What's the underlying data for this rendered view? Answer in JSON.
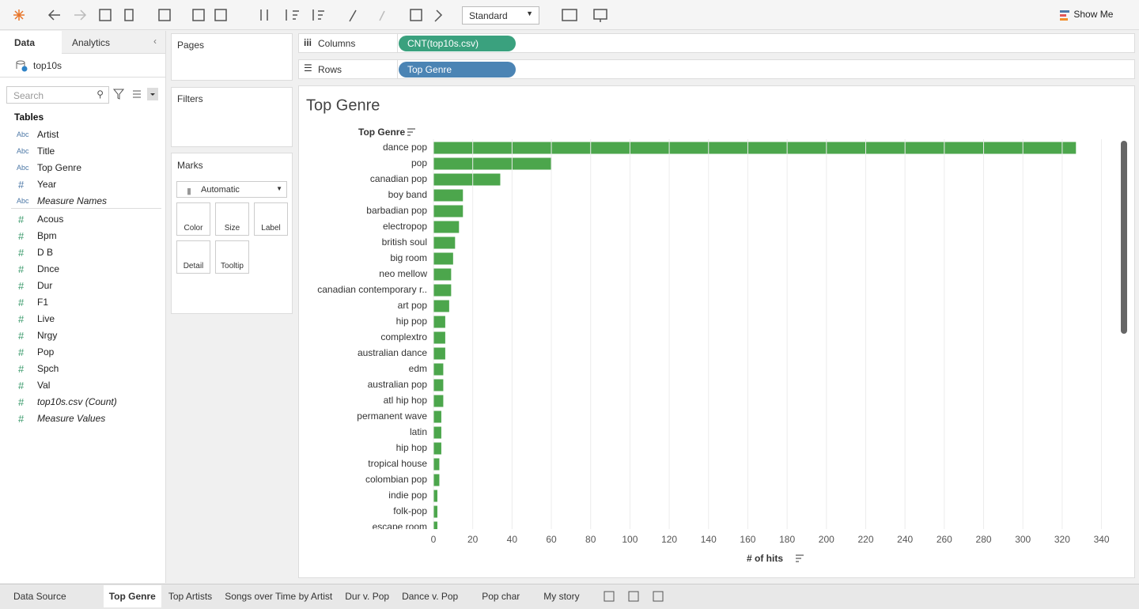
{
  "toolbar": {
    "fit": "Standard",
    "show_me": "Show Me"
  },
  "data_pane": {
    "tabs": [
      "Data",
      "Analytics"
    ],
    "source": "top10s",
    "search_placeholder": "Search",
    "section": "Tables",
    "dimensions": [
      {
        "type": "Abc",
        "name": "Artist",
        "italic": false
      },
      {
        "type": "Abc",
        "name": "Title",
        "italic": false
      },
      {
        "type": "Abc",
        "name": "Top Genre",
        "italic": false
      },
      {
        "type": "#",
        "name": "Year",
        "italic": false
      },
      {
        "type": "Abc",
        "name": "Measure Names",
        "italic": true
      }
    ],
    "measures": [
      {
        "type": "#",
        "name": "Acous",
        "italic": false
      },
      {
        "type": "#",
        "name": "Bpm",
        "italic": false
      },
      {
        "type": "#",
        "name": "D B",
        "italic": false
      },
      {
        "type": "#",
        "name": "Dnce",
        "italic": false
      },
      {
        "type": "#",
        "name": "Dur",
        "italic": false
      },
      {
        "type": "#",
        "name": "F1",
        "italic": false
      },
      {
        "type": "#",
        "name": "Live",
        "italic": false
      },
      {
        "type": "#",
        "name": "Nrgy",
        "italic": false
      },
      {
        "type": "#",
        "name": "Pop",
        "italic": false
      },
      {
        "type": "#",
        "name": "Spch",
        "italic": false
      },
      {
        "type": "#",
        "name": "Val",
        "italic": false
      },
      {
        "type": "#",
        "name": "top10s.csv (Count)",
        "italic": true
      },
      {
        "type": "#",
        "name": "Measure Values",
        "italic": true
      }
    ]
  },
  "shelves": {
    "pages": "Pages",
    "filters": "Filters",
    "marks": "Marks",
    "mark_type": "Automatic",
    "mark_buttons": [
      "Color",
      "Size",
      "Label",
      "Detail",
      "Tooltip"
    ],
    "columns": "Columns",
    "columns_pill": "CNT(top10s.csv)",
    "rows": "Rows",
    "rows_pill": "Top Genre"
  },
  "chart_data": {
    "type": "bar",
    "orientation": "horizontal",
    "title": "Top Genre",
    "y_header": "Top Genre",
    "x_label": "# of hits",
    "color": "#4ca64c",
    "grid": true,
    "categories": [
      "dance pop",
      "pop",
      "canadian pop",
      "boy band",
      "barbadian pop",
      "electropop",
      "british soul",
      "big room",
      "neo mellow",
      "canadian contemporary r..",
      "art pop",
      "hip pop",
      "complextro",
      "australian dance",
      "edm",
      "australian pop",
      "atl hip hop",
      "permanent wave",
      "latin",
      "hip hop",
      "tropical house",
      "colombian pop",
      "indie pop",
      "folk-pop",
      "escape room"
    ],
    "values": [
      327,
      60,
      34,
      15,
      15,
      13,
      11,
      10,
      9,
      9,
      8,
      6,
      6,
      6,
      5,
      5,
      5,
      4,
      4,
      4,
      3,
      3,
      2,
      2,
      2
    ],
    "xlim": [
      0,
      345
    ],
    "xticks": [
      0,
      20,
      40,
      60,
      80,
      100,
      120,
      140,
      160,
      180,
      200,
      220,
      240,
      260,
      280,
      300,
      320,
      340
    ]
  },
  "sheet_tabs": [
    "Data Source",
    "Top Genre",
    "Top Artists",
    "Songs over Time by Artist",
    "Dur v. Pop",
    "Dance v. Pop",
    "Pop char",
    "My story"
  ],
  "active_tab": 1
}
